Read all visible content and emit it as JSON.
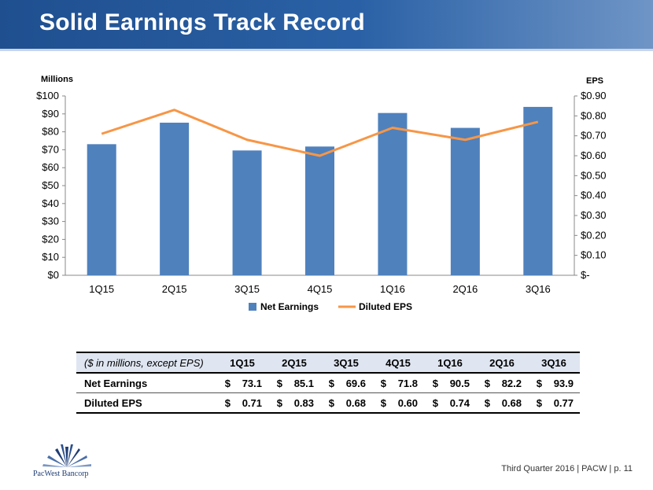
{
  "title": "Solid Earnings Track Record",
  "colors": {
    "bars": "#4f81bd",
    "line": "#f79646",
    "header": "#2a61a6"
  },
  "chart_data": {
    "type": "bar",
    "categories": [
      "1Q15",
      "2Q15",
      "3Q15",
      "4Q15",
      "1Q16",
      "2Q16",
      "3Q16"
    ],
    "series": [
      {
        "name": "Net Earnings",
        "type": "bar",
        "axis": "left",
        "values": [
          73.1,
          85.1,
          69.6,
          71.8,
          90.5,
          82.2,
          93.9
        ]
      },
      {
        "name": "Diluted EPS",
        "type": "line",
        "axis": "right",
        "values": [
          0.71,
          0.83,
          0.68,
          0.6,
          0.74,
          0.68,
          0.77
        ]
      }
    ],
    "ylabel_left": "Millions",
    "ylabel_right": "EPS",
    "ylim_left": [
      0,
      100
    ],
    "ylim_right": [
      0,
      0.9
    ],
    "yticks_left": [
      "$0",
      "$10",
      "$20",
      "$30",
      "$40",
      "$50",
      "$60",
      "$70",
      "$80",
      "$90",
      "$100"
    ],
    "yticks_right": [
      "$-",
      "$0.10",
      "$0.20",
      "$0.30",
      "$0.40",
      "$0.50",
      "$0.60",
      "$0.70",
      "$0.80",
      "$0.90"
    ],
    "grid": false,
    "legend": "bottom"
  },
  "table": {
    "caption": "($ in millions, except EPS)",
    "columns": [
      "1Q15",
      "2Q15",
      "3Q15",
      "4Q15",
      "1Q16",
      "2Q16",
      "3Q16"
    ],
    "rows": [
      {
        "label": "Net Earnings",
        "currency": "$",
        "values": [
          "73.1",
          "85.1",
          "69.6",
          "71.8",
          "90.5",
          "82.2",
          "93.9"
        ]
      },
      {
        "label": "Diluted EPS",
        "currency": "$",
        "values": [
          "0.71",
          "0.83",
          "0.68",
          "0.60",
          "0.74",
          "0.68",
          "0.77"
        ]
      }
    ]
  },
  "logo": {
    "name": "pacwest-logo",
    "text": "PacWest Bancorp"
  },
  "footer": "Third Quarter 2016 | PACW | p. 11"
}
